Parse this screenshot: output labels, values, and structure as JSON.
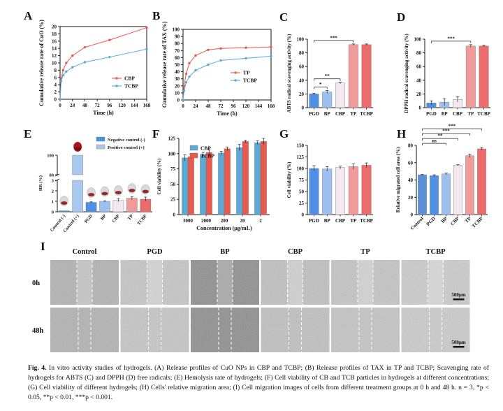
{
  "colors": {
    "cbp": "#e8594e",
    "tcbp": "#5aa9d6",
    "neg": "#4a8fe0",
    "pos": "#a8c8f0",
    "pgd": "#4f8fe6",
    "bp": "#9cc0f0",
    "cbp_bar": "#f4e7f0",
    "tp": "#f19a9a",
    "tcbp_bar": "#ec6b6b",
    "grey": "#8a8a8a"
  },
  "panels": {
    "A": {
      "letter": "A",
      "ylabel": "Cumulative release rate of CuO (%)",
      "xlabel": "Time (h)",
      "legend": [
        "CBP",
        "TCBP"
      ]
    },
    "B": {
      "letter": "B",
      "ylabel": "Cumulative release rate of TAX (%)",
      "xlabel": "Time (h)",
      "legend": [
        "TP",
        "TCBP"
      ]
    },
    "C": {
      "letter": "C",
      "ylabel": "ABTS radical scavenging activity (%)"
    },
    "D": {
      "letter": "D",
      "ylabel": "DPPH radical scavenging activity (%)"
    },
    "E": {
      "letter": "E",
      "ylabel": "HR (%)",
      "legend": [
        "Negative control (-)",
        "Positive control (+)"
      ]
    },
    "F": {
      "letter": "F",
      "ylabel": "Cell viability (%)",
      "xlabel": "Concentration (μg/mL)",
      "legend": [
        "CBP",
        "TCBP"
      ]
    },
    "G": {
      "letter": "G",
      "ylabel": "Cell viability (%)"
    },
    "H": {
      "letter": "H",
      "ylabel": "Relative migrated cell area (%)"
    },
    "I": {
      "letter": "I",
      "columns": [
        "Control",
        "PGD",
        "BP",
        "CBP",
        "TP",
        "TCBP"
      ],
      "rows": [
        "0h",
        "48h"
      ],
      "scale": "500μm"
    }
  },
  "chart_data": [
    {
      "panel": "A",
      "type": "line",
      "x": [
        0,
        2,
        6,
        12,
        24,
        48,
        96,
        168
      ],
      "series": [
        {
          "name": "CBP",
          "values": [
            0,
            5.8,
            8.0,
            10.0,
            12.0,
            14.3,
            16.3,
            19.7
          ]
        },
        {
          "name": "TCBP",
          "values": [
            0,
            5.0,
            6.6,
            7.6,
            8.8,
            10.2,
            11.6,
            13.8
          ]
        }
      ],
      "xticks": [
        0,
        24,
        48,
        72,
        96,
        120,
        144,
        168
      ],
      "yticks": [
        0,
        2,
        4,
        6,
        8,
        10,
        12,
        14,
        16,
        18,
        20
      ],
      "xlim": [
        0,
        168
      ],
      "ylim": [
        0,
        20
      ],
      "xlabel": "Time (h)",
      "ylabel": "Cumulative release rate of CuO (%)"
    },
    {
      "panel": "B",
      "type": "line",
      "x": [
        0,
        2,
        6,
        12,
        24,
        48,
        72,
        120,
        168
      ],
      "series": [
        {
          "name": "TP",
          "values": [
            0,
            20,
            37,
            52,
            63,
            71,
            73,
            74,
            75
          ]
        },
        {
          "name": "TCBP",
          "values": [
            0,
            13,
            25,
            33,
            42,
            50,
            56,
            59,
            62
          ]
        }
      ],
      "xticks": [
        0,
        24,
        48,
        72,
        96,
        120,
        144,
        168
      ],
      "yticks": [
        0,
        10,
        20,
        30,
        40,
        50,
        60,
        70,
        80,
        90,
        100
      ],
      "xlim": [
        0,
        168
      ],
      "ylim": [
        0,
        100
      ],
      "xlabel": "Time (h)",
      "ylabel": "Cumulative release rate of TAX (%)"
    },
    {
      "panel": "C",
      "type": "bar",
      "categories": [
        "PGD",
        "BP",
        "CBP",
        "TP",
        "TCBP"
      ],
      "values": [
        20,
        23,
        36,
        92,
        92
      ],
      "errors": [
        1,
        2,
        1,
        1,
        1
      ],
      "yticks": [
        0,
        20,
        40,
        60,
        80,
        100
      ],
      "ylim": [
        0,
        100
      ],
      "significance": [
        {
          "from": 0,
          "to": 1,
          "label": "*"
        },
        {
          "from": 0,
          "to": 2,
          "label": "**"
        },
        {
          "from": 0,
          "to": 3,
          "label": "***"
        }
      ],
      "ylabel": "ABTS radical scavenging activity (%)"
    },
    {
      "panel": "D",
      "type": "bar",
      "categories": [
        "PGD",
        "BP",
        "CBP",
        "TP",
        "TCBP"
      ],
      "values": [
        7,
        8,
        12,
        90,
        90
      ],
      "errors": [
        3,
        5,
        4,
        2,
        1
      ],
      "yticks": [
        0,
        20,
        40,
        60,
        80,
        100
      ],
      "ylim": [
        0,
        100
      ],
      "significance": [
        {
          "from": 0,
          "to": 3,
          "label": "***"
        }
      ],
      "ylabel": "DPPH radical scavenging activity (%)"
    },
    {
      "panel": "E",
      "type": "bar",
      "categories": [
        "Control (-)",
        "Control (+)",
        "PGD",
        "BP",
        "CBP",
        "TP",
        "TCBP"
      ],
      "values": [
        0.1,
        100,
        0.9,
        1.0,
        1.1,
        1.3,
        1.2
      ],
      "errors": [
        0,
        0,
        0.05,
        0.05,
        0.15,
        0.15,
        0.2
      ],
      "yticks_lower": [
        0,
        1,
        2,
        3
      ],
      "yticks_upper": [
        80,
        100
      ],
      "axis_break": [
        3,
        80
      ],
      "ylabel": "HR (%)"
    },
    {
      "panel": "F",
      "type": "bar",
      "categories": [
        "3000",
        "2000",
        "200",
        "20",
        "2"
      ],
      "series": [
        {
          "name": "CBP",
          "values": [
            93,
            98,
            101,
            110,
            118
          ],
          "errors": [
            5,
            4,
            3,
            5,
            3
          ]
        },
        {
          "name": "TCBP",
          "values": [
            95,
            102,
            108,
            120,
            120
          ],
          "errors": [
            3,
            4,
            3,
            2,
            5
          ]
        }
      ],
      "yticks": [
        0,
        25,
        50,
        75,
        100,
        125
      ],
      "ylim": [
        0,
        125
      ],
      "xlabel": "Concentration (μg/mL)",
      "ylabel": "Cell viability (%)"
    },
    {
      "panel": "G",
      "type": "bar",
      "categories": [
        "PGD",
        "BP",
        "CBP",
        "TP",
        "TCBP"
      ],
      "values": [
        100,
        99,
        102,
        104,
        107
      ],
      "errors": [
        6,
        5,
        3,
        6,
        5
      ],
      "yticks": [
        0,
        25,
        50,
        75,
        100,
        125,
        150
      ],
      "ylim": [
        0,
        150
      ],
      "ylabel": "Cell viability (%)"
    },
    {
      "panel": "H",
      "type": "bar",
      "categories": [
        "Control",
        "PGD",
        "BP",
        "CBP",
        "TP",
        "TCBP"
      ],
      "values": [
        46,
        45,
        47,
        57,
        68,
        76
      ],
      "errors": [
        0.5,
        1,
        1,
        0.7,
        2,
        1.5
      ],
      "yticks": [
        0,
        20,
        40,
        60,
        80
      ],
      "ylim": [
        0,
        80
      ],
      "significance": [
        {
          "from": 0,
          "to": 2,
          "label": "ns"
        },
        {
          "from": 0,
          "to": 3,
          "label": "**"
        },
        {
          "from": 0,
          "to": 4,
          "label": "***"
        },
        {
          "from": 0,
          "to": 5,
          "label": "***"
        }
      ],
      "ylabel": "Relative migrated cell area (%)"
    }
  ],
  "caption": {
    "label": "Fig. 4.",
    "text": "In vitro activity studies of hydrogels. (A) Release profiles of CuO NPs in CBP and TCBP; (B) Release profiles of TAX in TP and TCBP; Scavenging rate of hydrogels for ABTS (C) and DPPH (D) free radicals; (E) Hemolysis rate of hydrogels; (F) Cell viability of CB and TCB particles in hydrogels at different concentrations; (G) Cell viability of different hydrogels; (H) Cells' relative migration area; (I) Cell migration images of cells from different treatment groups at 0 h and 48 h. n = 3, *p < 0.05, **p < 0.01, ***p < 0.001."
  }
}
